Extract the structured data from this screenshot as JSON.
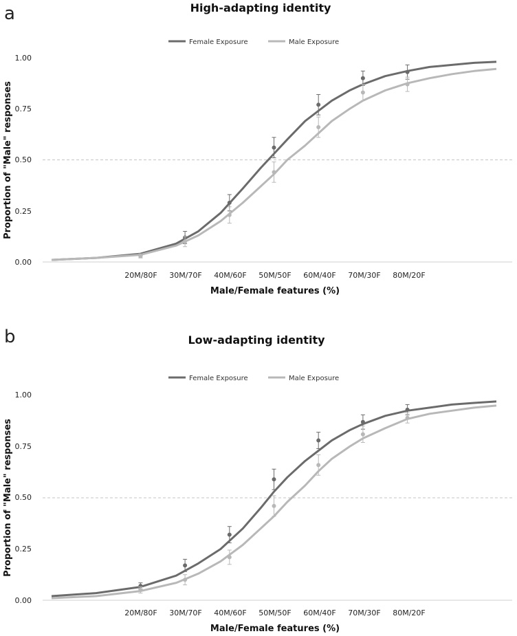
{
  "chart_data": [
    {
      "panel": "a",
      "type": "line",
      "title": "High-adapting identity",
      "xlabel": "Male/Female features (%)",
      "ylabel": "Proportion of \"Male\" responses",
      "categories": [
        "20M/80F",
        "30M/70F",
        "40M/60F",
        "50M/50F",
        "60M/40F",
        "70M/30F",
        "80M/20F"
      ],
      "x_values": [
        20,
        30,
        40,
        50,
        60,
        70,
        80
      ],
      "xlim": [
        0,
        105
      ],
      "ylim": [
        0,
        1
      ],
      "yticks": [
        "0.00",
        "0.25",
        "0.50",
        "0.75",
        "1.00"
      ],
      "reference_line": 0.5,
      "legend_position": "top-center",
      "series": [
        {
          "name": "Female Exposure",
          "color": "#6b6b6b",
          "points": [
            0.03,
            0.12,
            0.29,
            0.56,
            0.77,
            0.9,
            0.93
          ],
          "error": [
            0.01,
            0.03,
            0.04,
            0.05,
            0.05,
            0.035,
            0.035
          ],
          "curve": [
            [
              0,
              0.01
            ],
            [
              10,
              0.02
            ],
            [
              20,
              0.04
            ],
            [
              28,
              0.09
            ],
            [
              33,
              0.15
            ],
            [
              38,
              0.24
            ],
            [
              43,
              0.36
            ],
            [
              47,
              0.46
            ],
            [
              50,
              0.53
            ],
            [
              53,
              0.6
            ],
            [
              57,
              0.69
            ],
            [
              60,
              0.74
            ],
            [
              63,
              0.79
            ],
            [
              67,
              0.84
            ],
            [
              70,
              0.87
            ],
            [
              75,
              0.91
            ],
            [
              80,
              0.935
            ],
            [
              85,
              0.955
            ],
            [
              90,
              0.965
            ],
            [
              95,
              0.975
            ],
            [
              100,
              0.98
            ]
          ]
        },
        {
          "name": "Male Exposure",
          "color": "#b8b8b8",
          "points": [
            0.03,
            0.1,
            0.23,
            0.44,
            0.66,
            0.83,
            0.87
          ],
          "error": [
            0.01,
            0.025,
            0.04,
            0.05,
            0.05,
            0.04,
            0.035
          ],
          "curve": [
            [
              0,
              0.01
            ],
            [
              10,
              0.02
            ],
            [
              20,
              0.035
            ],
            [
              28,
              0.08
            ],
            [
              33,
              0.13
            ],
            [
              38,
              0.2
            ],
            [
              43,
              0.29
            ],
            [
              47,
              0.37
            ],
            [
              50,
              0.43
            ],
            [
              53,
              0.5
            ],
            [
              57,
              0.57
            ],
            [
              60,
              0.63
            ],
            [
              63,
              0.69
            ],
            [
              67,
              0.75
            ],
            [
              70,
              0.79
            ],
            [
              75,
              0.84
            ],
            [
              80,
              0.875
            ],
            [
              85,
              0.9
            ],
            [
              90,
              0.92
            ],
            [
              95,
              0.935
            ],
            [
              100,
              0.945
            ]
          ]
        }
      ]
    },
    {
      "panel": "b",
      "type": "line",
      "title": "Low-adapting identity",
      "xlabel": "Male/Female features (%)",
      "ylabel": "Proportion of \"Male\" responses",
      "categories": [
        "20M/80F",
        "30M/70F",
        "40M/60F",
        "50M/50F",
        "60M/40F",
        "70M/30F",
        "80M/20F"
      ],
      "x_values": [
        20,
        30,
        40,
        50,
        60,
        70,
        80
      ],
      "xlim": [
        0,
        105
      ],
      "ylim": [
        0,
        1
      ],
      "yticks": [
        "0.00",
        "0.25",
        "0.50",
        "0.75",
        "1.00"
      ],
      "reference_line": 0.5,
      "legend_position": "top-center",
      "series": [
        {
          "name": "Female Exposure",
          "color": "#6b6b6b",
          "points": [
            0.07,
            0.17,
            0.32,
            0.59,
            0.78,
            0.87,
            0.93
          ],
          "error": [
            0.015,
            0.03,
            0.04,
            0.05,
            0.04,
            0.035,
            0.025
          ],
          "curve": [
            [
              0,
              0.02
            ],
            [
              10,
              0.035
            ],
            [
              20,
              0.065
            ],
            [
              28,
              0.12
            ],
            [
              33,
              0.18
            ],
            [
              38,
              0.25
            ],
            [
              43,
              0.35
            ],
            [
              47,
              0.45
            ],
            [
              50,
              0.53
            ],
            [
              53,
              0.6
            ],
            [
              57,
              0.68
            ],
            [
              60,
              0.73
            ],
            [
              63,
              0.78
            ],
            [
              67,
              0.83
            ],
            [
              70,
              0.86
            ],
            [
              75,
              0.9
            ],
            [
              80,
              0.925
            ],
            [
              85,
              0.94
            ],
            [
              90,
              0.955
            ],
            [
              95,
              0.963
            ],
            [
              100,
              0.97
            ]
          ]
        },
        {
          "name": "Male Exposure",
          "color": "#b8b8b8",
          "points": [
            0.05,
            0.1,
            0.21,
            0.46,
            0.66,
            0.81,
            0.89
          ],
          "error": [
            0.015,
            0.025,
            0.035,
            0.05,
            0.05,
            0.04,
            0.025
          ],
          "curve": [
            [
              0,
              0.01
            ],
            [
              10,
              0.02
            ],
            [
              20,
              0.045
            ],
            [
              28,
              0.085
            ],
            [
              33,
              0.13
            ],
            [
              38,
              0.19
            ],
            [
              43,
              0.27
            ],
            [
              47,
              0.35
            ],
            [
              50,
              0.41
            ],
            [
              53,
              0.48
            ],
            [
              57,
              0.56
            ],
            [
              60,
              0.63
            ],
            [
              63,
              0.69
            ],
            [
              67,
              0.75
            ],
            [
              70,
              0.79
            ],
            [
              75,
              0.84
            ],
            [
              80,
              0.885
            ],
            [
              85,
              0.91
            ],
            [
              90,
              0.925
            ],
            [
              95,
              0.94
            ],
            [
              100,
              0.95
            ]
          ]
        }
      ]
    }
  ]
}
